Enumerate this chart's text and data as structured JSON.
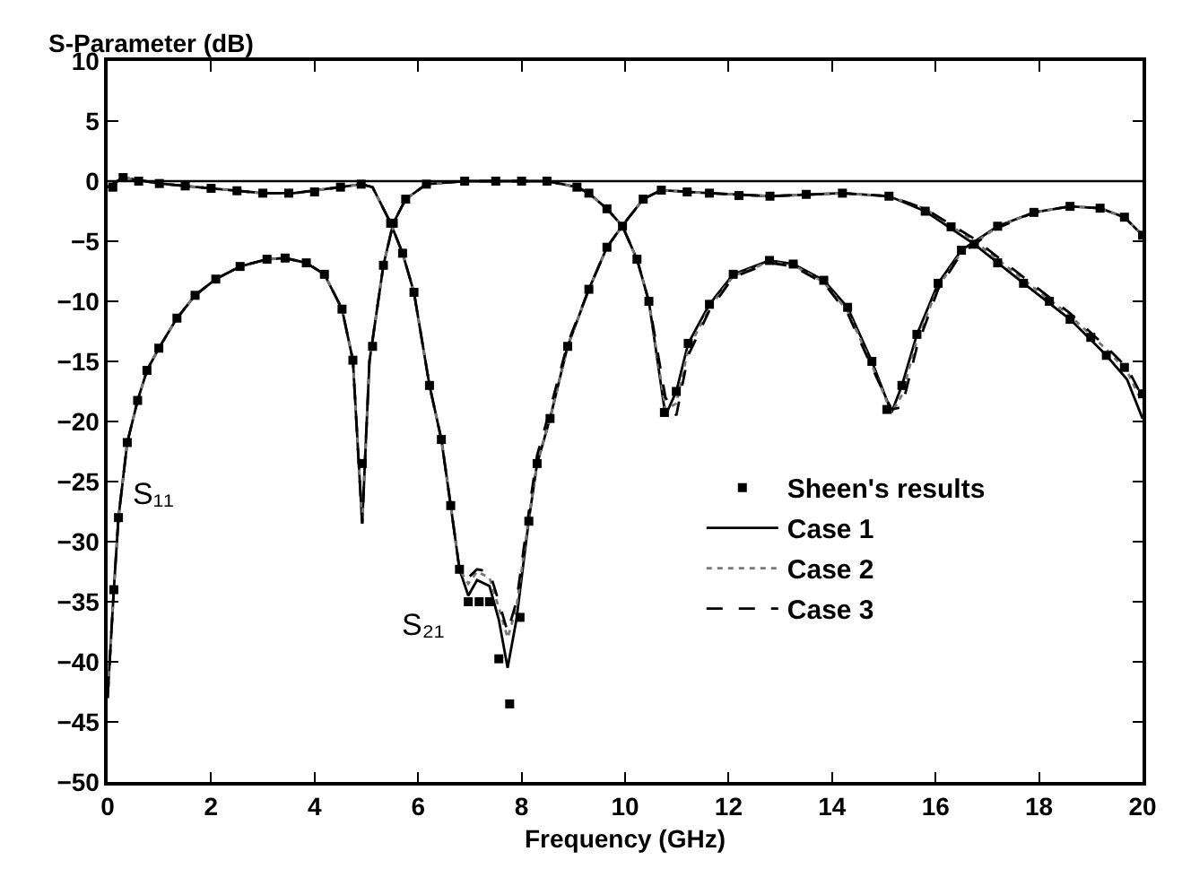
{
  "chart_data": {
    "type": "line",
    "ylabel": "S-Parameter (dB)",
    "xlabel": "Frequency (GHz)",
    "xlim": [
      0,
      20
    ],
    "xticks": [
      0,
      2,
      4,
      6,
      8,
      10,
      12,
      14,
      16,
      18,
      20
    ],
    "ylim": [
      -50,
      10
    ],
    "yticks": [
      -50,
      -45,
      -40,
      -35,
      -30,
      -25,
      -20,
      -15,
      -10,
      -5,
      0,
      5,
      10
    ],
    "legend": "bottom right",
    "ref_lines": [
      {
        "axis": "y",
        "value": 0,
        "color": "#000000"
      }
    ],
    "annotations": [
      "S₁₁",
      "S₂₁"
    ],
    "series": [
      {
        "name": "Sheen's results",
        "type": "scatter",
        "marker": "square",
        "color": "#000000",
        "x": [
          0.12,
          0.21,
          0.38,
          0.58,
          0.76,
          0.99,
          1.34,
          1.69,
          2.09,
          2.56,
          3.08,
          3.43,
          3.84,
          4.19,
          4.53,
          4.74,
          4.92,
          5.12,
          5.33,
          5.52,
          5.76,
          6.16,
          6.9,
          7.5,
          8.0,
          8.49,
          9.07,
          9.3,
          9.65,
          9.95,
          10.23,
          10.46,
          10.76,
          10.99,
          11.22,
          11.63,
          12.09,
          12.79,
          13.25,
          13.84,
          14.3,
          14.77,
          15.06,
          15.35,
          15.64,
          16.05,
          16.5,
          17.2,
          17.9,
          18.6,
          19.18,
          19.65,
          20,
          0.1,
          0.3,
          0.6,
          1.0,
          1.5,
          2,
          2.5,
          3,
          3.5,
          4,
          4.5,
          4.9,
          5.47,
          5.7,
          5.92,
          6.22,
          6.45,
          6.63,
          6.8,
          6.97,
          7.18,
          7.38,
          7.56,
          7.77,
          7.97,
          8.14,
          8.3,
          8.55,
          8.89,
          9.3,
          9.65,
          10.35,
          10.7,
          11.2,
          11.63,
          12.2,
          12.8,
          13.5,
          14.2,
          15.1,
          15.8,
          16.3,
          16.75,
          17.2,
          17.7,
          18.2,
          18.6,
          19.0,
          19.3,
          19.65,
          20
        ],
        "values": [
          -34,
          -28,
          -21.75,
          -18.25,
          -15.75,
          -13.9,
          -11.4,
          -9.5,
          -8.15,
          -7.1,
          -6.5,
          -6.4,
          -6.8,
          -7.75,
          -10.65,
          -14.9,
          -23.5,
          -13.75,
          -7,
          -3.5,
          -1.5,
          -0.25,
          0,
          0,
          0,
          0,
          -0.5,
          -1,
          -2.3,
          -3.75,
          -6.5,
          -10,
          -19.25,
          -17.5,
          -13.5,
          -10.25,
          -7.75,
          -6.6,
          -6.9,
          -8.25,
          -10.5,
          -15,
          -19,
          -17,
          -12.75,
          -8.5,
          -5.75,
          -3.75,
          -2.6,
          -2.1,
          -2.25,
          -3,
          -4.5,
          -0.5,
          0.3,
          0,
          -0.2,
          -0.4,
          -0.6,
          -0.8,
          -1,
          -1,
          -0.9,
          -0.5,
          -0.25,
          -3.5,
          -6,
          -9.25,
          -17,
          -21.5,
          -27,
          -32.3,
          -35,
          -35,
          -35,
          -39.75,
          -43.5,
          -36.3,
          -28.3,
          -23.5,
          -19.75,
          -13.75,
          -9,
          -5.5,
          -1.5,
          -0.75,
          -0.9,
          -1,
          -1.2,
          -1.25,
          -1.1,
          -1,
          -1.25,
          -2.5,
          -3.8,
          -5.25,
          -6.8,
          -8.5,
          -10,
          -11.5,
          -13,
          -14.5,
          -15.5,
          -17.7
        ]
      },
      {
        "name": "Case 1",
        "line_style": "solid",
        "color": "#000000",
        "x": [
          0,
          0.12,
          0.21,
          0.38,
          0.58,
          0.76,
          0.99,
          1.34,
          1.69,
          2.09,
          2.56,
          3.08,
          3.43,
          3.84,
          4.19,
          4.53,
          4.74,
          4.92,
          5.06,
          5.33,
          5.52,
          5.76,
          6.16,
          6.9,
          8.49,
          9.07,
          9.3,
          9.65,
          9.95,
          10.23,
          10.46,
          10.78,
          10.99,
          11.22,
          11.63,
          12.09,
          12.79,
          13.25,
          13.84,
          14.3,
          14.77,
          15.15,
          15.35,
          15.64,
          16.05,
          16.5,
          17.2,
          17.9,
          18.6,
          19.18,
          19.65,
          20
        ],
        "values": [
          -43,
          -34,
          -28,
          -21.75,
          -18.25,
          -15.75,
          -13.9,
          -11.4,
          -9.5,
          -8.15,
          -7.1,
          -6.5,
          -6.4,
          -6.8,
          -7.75,
          -10.65,
          -14.9,
          -28.5,
          -15,
          -7,
          -3.5,
          -1.5,
          -0.25,
          0,
          0,
          -0.5,
          -1,
          -2.3,
          -3.75,
          -6.5,
          -10,
          -19.5,
          -17.5,
          -13.5,
          -10.25,
          -7.75,
          -6.6,
          -6.9,
          -8.25,
          -10.5,
          -15,
          -19.25,
          -17,
          -12.75,
          -8.5,
          -5.75,
          -3.75,
          -2.6,
          -2.1,
          -2.25,
          -3,
          -4.5
        ]
      },
      {
        "name": "Case 2",
        "line_style": "dotted",
        "color": "#777777",
        "x": [
          0,
          0.12,
          0.21,
          0.38,
          0.58,
          0.76,
          0.99,
          1.34,
          1.69,
          2.09,
          2.56,
          3.08,
          3.43,
          3.84,
          4.19,
          4.53,
          4.74,
          4.92,
          5.06,
          5.33,
          5.52,
          5.76,
          6.16,
          6.9,
          8.49,
          9.07,
          9.3,
          9.65,
          9.95,
          10.23,
          10.46,
          10.78,
          10.99,
          11.22,
          11.63,
          12.09,
          12.79,
          13.25,
          13.84,
          14.3,
          14.77,
          15.15,
          15.35,
          15.64,
          16.05,
          16.5,
          17.2,
          17.9,
          18.6,
          19.18,
          19.65,
          20
        ],
        "values": [
          -43,
          -34,
          -28,
          -21.75,
          -18.25,
          -15.75,
          -13.9,
          -11.4,
          -9.5,
          -8.15,
          -7.1,
          -6.5,
          -6.4,
          -6.8,
          -7.75,
          -10.65,
          -14.9,
          -28.5,
          -15,
          -7,
          -3.5,
          -1.5,
          -0.25,
          0,
          0,
          -0.5,
          -1,
          -2.3,
          -3.75,
          -6.5,
          -10,
          -19,
          -18.5,
          -14,
          -10.5,
          -7.9,
          -6.7,
          -7,
          -8.4,
          -10.8,
          -15.3,
          -19.3,
          -17.8,
          -13.2,
          -8.8,
          -5.9,
          -3.8,
          -2.6,
          -2.1,
          -2.25,
          -3,
          -4.5
        ]
      },
      {
        "name": "Case 3",
        "line_style": "dashed",
        "color": "#000000",
        "x": [
          0,
          0.12,
          0.21,
          0.38,
          0.58,
          0.76,
          0.99,
          1.34,
          1.69,
          2.09,
          2.56,
          3.08,
          3.43,
          3.84,
          4.19,
          4.53,
          4.74,
          4.92,
          5.06,
          5.33,
          5.52,
          5.76,
          6.16,
          6.9,
          8.49,
          9.07,
          9.3,
          9.65,
          9.95,
          10.23,
          10.46,
          10.78,
          10.99,
          11.22,
          11.63,
          12.09,
          12.79,
          13.25,
          13.84,
          14.3,
          14.77,
          15.15,
          15.35,
          15.64,
          16.05,
          16.5,
          17.2,
          17.9,
          18.6,
          19.18,
          19.65,
          20
        ],
        "values": [
          -43,
          -34,
          -28,
          -21.75,
          -18.25,
          -15.75,
          -13.9,
          -11.4,
          -9.5,
          -8.15,
          -7.1,
          -6.5,
          -6.4,
          -6.8,
          -7.75,
          -10.65,
          -14.9,
          -28.5,
          -15,
          -7,
          -3.5,
          -1.5,
          -0.25,
          0,
          0,
          -0.5,
          -1,
          -2.3,
          -3.75,
          -6.5,
          -10,
          -18,
          -19.5,
          -14.5,
          -10.75,
          -8,
          -6.8,
          -7.1,
          -8.5,
          -11,
          -15.5,
          -19,
          -18.8,
          -13.8,
          -9,
          -6,
          -3.9,
          -2.6,
          -2.1,
          -2.25,
          -3,
          -4.5
        ]
      },
      {
        "line_style": "solid",
        "color": "#000000",
        "x": [
          0,
          0.3,
          1,
          2,
          3,
          3.6,
          4.5,
          4.9,
          5.12,
          5.47,
          5.7,
          5.92,
          6.22,
          6.45,
          6.63,
          6.8,
          6.97,
          7.14,
          7.38,
          7.56,
          7.73,
          7.9,
          8.14,
          8.3,
          8.55,
          8.89,
          9.3,
          9.65,
          9.94,
          10.35,
          10.7,
          11.63,
          12.8,
          14.2,
          15.1,
          15.8,
          16.75,
          17.7,
          18.6,
          19.3,
          19.7,
          20
        ],
        "values": [
          -0.5,
          0.3,
          -0.2,
          -0.6,
          -1,
          -1,
          -0.5,
          -0.25,
          -0.5,
          -3.5,
          -6,
          -9.25,
          -17,
          -21.5,
          -27,
          -32.3,
          -34.5,
          -33.2,
          -33.7,
          -36.5,
          -40.5,
          -36.5,
          -28.2,
          -23.5,
          -19.75,
          -13.75,
          -9,
          -5.5,
          -3.75,
          -1.5,
          -0.75,
          -1,
          -1.25,
          -1,
          -1.25,
          -2.5,
          -5.25,
          -8.5,
          -11.5,
          -14.5,
          -16.5,
          -19.75
        ]
      },
      {
        "line_style": "dotted",
        "color": "#777777",
        "x": [
          0,
          0.3,
          1,
          2,
          3,
          3.6,
          4.5,
          4.9,
          5.12,
          5.47,
          5.7,
          5.92,
          6.22,
          6.45,
          6.63,
          6.8,
          6.97,
          7.14,
          7.38,
          7.56,
          7.73,
          7.9,
          8.14,
          8.3,
          8.55,
          8.89,
          9.3,
          9.65,
          9.94,
          10.35,
          10.7,
          11.63,
          12.8,
          14.2,
          15.1,
          15.8,
          16.75,
          17.7,
          18.6,
          19.3,
          19.7,
          20
        ],
        "values": [
          -0.5,
          0.3,
          -0.2,
          -0.6,
          -1,
          -1,
          -0.5,
          -0.25,
          -0.5,
          -3.5,
          -6,
          -9.25,
          -17,
          -21.5,
          -27,
          -32.3,
          -33.5,
          -32.5,
          -33,
          -35.5,
          -38,
          -35.5,
          -28,
          -23.5,
          -19.75,
          -13.75,
          -9,
          -5.5,
          -3.75,
          -1.5,
          -0.75,
          -1,
          -1.25,
          -1,
          -1.25,
          -2.3,
          -5,
          -8.2,
          -11.2,
          -14,
          -15.8,
          -18.5
        ]
      },
      {
        "line_style": "dashed",
        "color": "#000000",
        "x": [
          0,
          0.3,
          1,
          2,
          3,
          3.6,
          4.5,
          4.9,
          5.12,
          5.47,
          5.7,
          5.92,
          6.22,
          6.45,
          6.63,
          6.8,
          6.97,
          7.14,
          7.38,
          7.56,
          7.73,
          7.9,
          8.14,
          8.3,
          8.55,
          8.89,
          9.3,
          9.65,
          9.94,
          10.35,
          10.7,
          11.63,
          12.8,
          14.2,
          15.1,
          15.8,
          16.75,
          17.7,
          18.6,
          19.3,
          19.7,
          20
        ],
        "values": [
          -0.5,
          0.3,
          -0.2,
          -0.6,
          -1,
          -1,
          -0.5,
          -0.25,
          -0.5,
          -3.5,
          -6,
          -9.25,
          -17,
          -21.5,
          -27,
          -32.3,
          -33,
          -32.3,
          -32.5,
          -35,
          -37.5,
          -35,
          -27.5,
          -22.8,
          -19,
          -13.5,
          -9,
          -5.5,
          -3.75,
          -1.5,
          -0.75,
          -1,
          -1.25,
          -1,
          -1.25,
          -2.3,
          -4.8,
          -8,
          -11,
          -13.8,
          -15.5,
          -18
        ]
      }
    ]
  }
}
